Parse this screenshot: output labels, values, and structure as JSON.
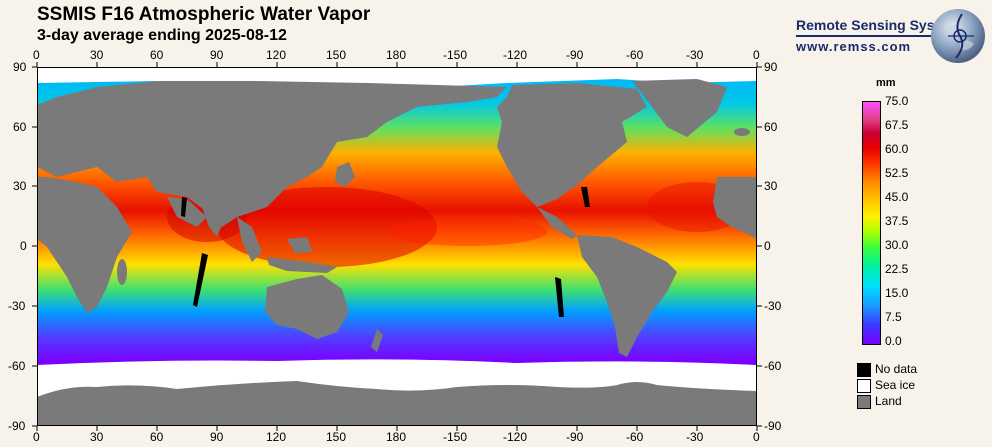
{
  "title": "SSMIS F16 Atmospheric Water Vapor",
  "subtitle": "3-day average ending 2025-08-12",
  "brand": {
    "name": "Remote Sensing Systems",
    "url": "www.remss.com"
  },
  "axes": {
    "lon_labels": [
      "0",
      "30",
      "60",
      "90",
      "120",
      "150",
      "180",
      "-150",
      "-120",
      "-90",
      "-60",
      "-30",
      "0"
    ],
    "lat_labels": [
      "90",
      "60",
      "30",
      "0",
      "-30",
      "-60",
      "-90"
    ]
  },
  "colorbar": {
    "unit": "mm",
    "labels": [
      "75.0",
      "67.5",
      "60.0",
      "52.5",
      "45.0",
      "37.5",
      "30.0",
      "22.5",
      "15.0",
      "7.5",
      "0.0"
    ]
  },
  "legend": [
    {
      "label": "No data",
      "color": "#000000"
    },
    {
      "label": "Sea ice",
      "color": "#ffffff"
    },
    {
      "label": "Land",
      "color": "#7a7a7a"
    }
  ],
  "colors": {
    "land": "#7a7a7a",
    "sea_ice": "#ffffff",
    "no_data": "#000000",
    "brand": "#1a2a6c"
  }
}
